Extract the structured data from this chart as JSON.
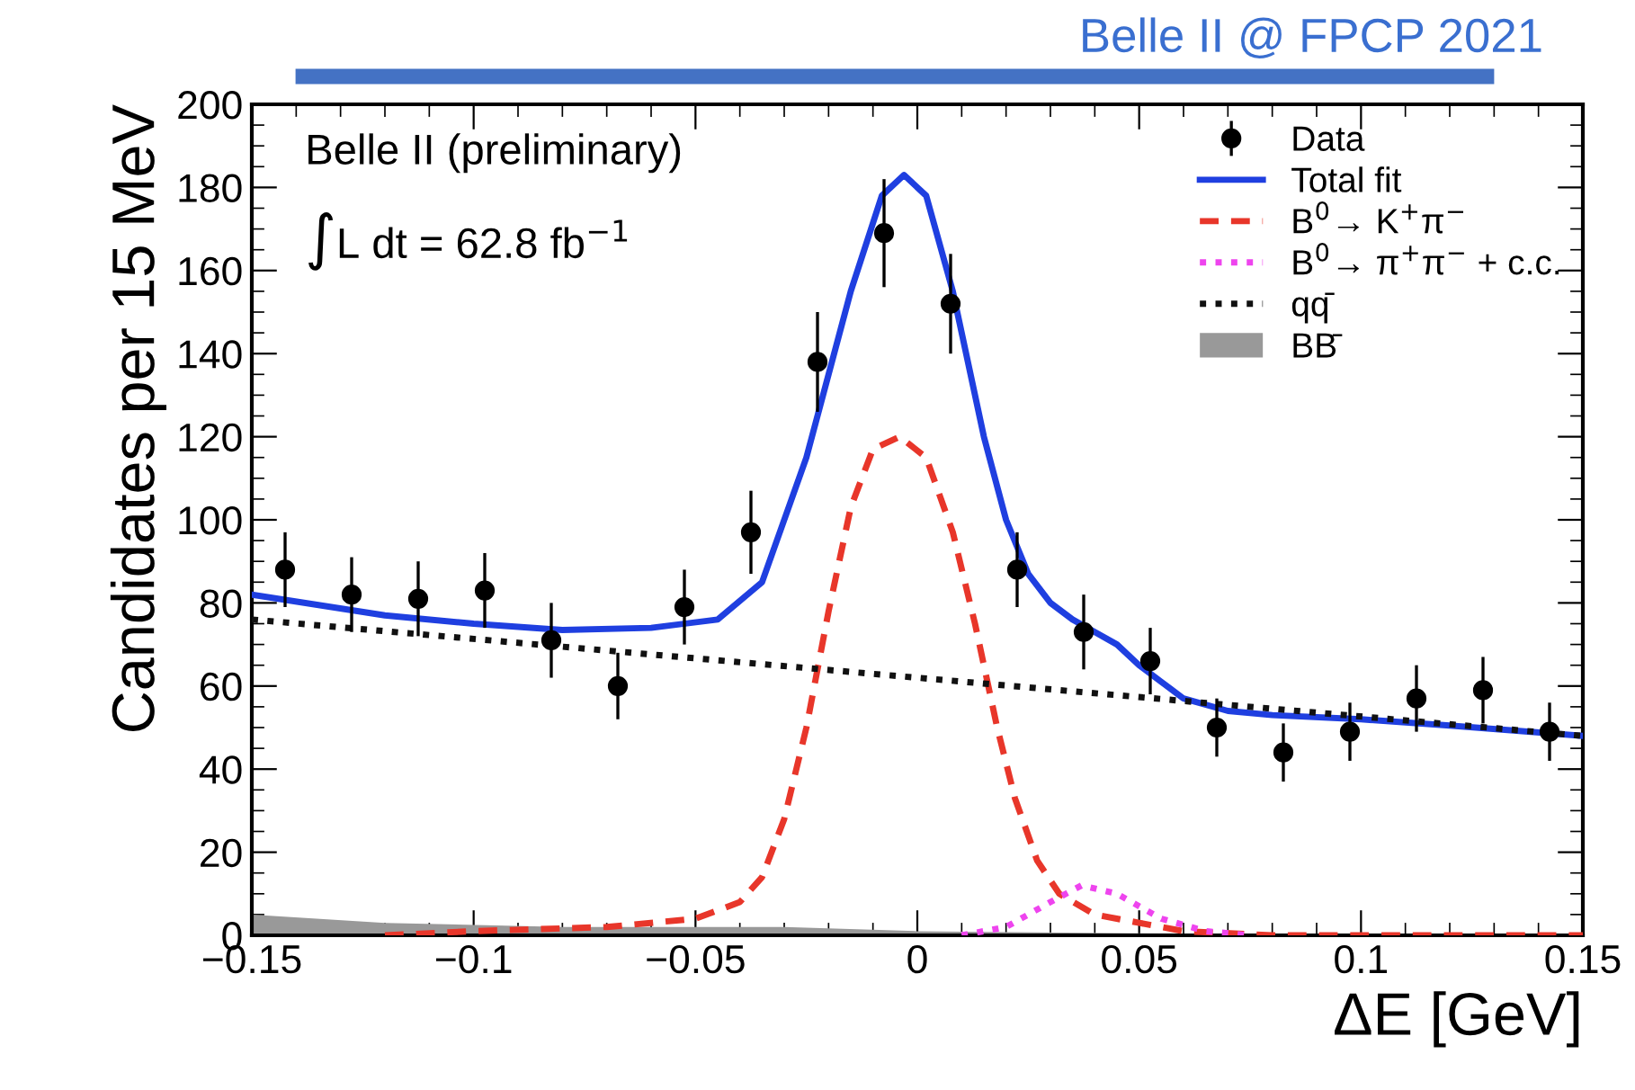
{
  "chart_data": {
    "type": "line",
    "title": "Belle II @ FPCP 2021",
    "xlabel": "ΔE [GeV]",
    "ylabel": "Candidates per 15 MeV",
    "annotations": [
      "Belle II (preliminary)",
      "∫L dt = 62.8 fb$^{−1}$"
    ],
    "xlim": [
      -0.15,
      0.15
    ],
    "xticks": [
      {
        "value": -0.15,
        "label": "−0.15"
      },
      {
        "value": -0.1,
        "label": "−0.1"
      },
      {
        "value": -0.05,
        "label": "−0.05"
      },
      0,
      0.05,
      0.1,
      0.15
    ],
    "ylim": [
      0,
      200
    ],
    "yticks": [
      0,
      20,
      40,
      60,
      80,
      100,
      120,
      140,
      160,
      180,
      200
    ],
    "grid": false,
    "legend": "top right",
    "series": [
      {
        "name": "Data",
        "type": "scatter",
        "marker": "circle",
        "color": "#000000",
        "x": [
          -0.1425,
          -0.1275,
          -0.1125,
          -0.0975,
          -0.0825,
          -0.0675,
          -0.0525,
          -0.0375,
          -0.0225,
          -0.0075,
          0.0075,
          0.0225,
          0.0375,
          0.0525,
          0.0675,
          0.0825,
          0.0975,
          0.1125,
          0.1275,
          0.1425
        ],
        "values": [
          88,
          82,
          81,
          83,
          71,
          60,
          79,
          97,
          138,
          169,
          152,
          88,
          73,
          66,
          50,
          44,
          49,
          57,
          59,
          49
        ],
        "errors": [
          9,
          9,
          9,
          9,
          9,
          8,
          9,
          10,
          12,
          13,
          12,
          9,
          9,
          8,
          7,
          7,
          7,
          8,
          8,
          7
        ]
      },
      {
        "name": "Total fit",
        "line_style": "solid",
        "color": "#1f3fe0",
        "x": [
          -0.15,
          -0.12,
          -0.1,
          -0.08,
          -0.06,
          -0.045,
          -0.035,
          -0.025,
          -0.015,
          -0.008,
          -0.003,
          0.002,
          0.008,
          0.015,
          0.02,
          0.025,
          0.03,
          0.035,
          0.04,
          0.045,
          0.05,
          0.055,
          0.06,
          0.07,
          0.08,
          0.1,
          0.12,
          0.15
        ],
        "values": [
          82,
          77,
          75,
          73.5,
          74,
          76,
          85,
          115,
          155,
          178,
          183,
          178,
          155,
          120,
          100,
          87,
          80,
          76,
          73,
          70,
          65,
          61,
          57,
          54,
          53,
          52,
          50.5,
          48
        ]
      },
      {
        "name": "B$^{0}$→ K$^{+}$π$^{−}$",
        "type": "line",
        "line_style": "dashed",
        "color": "#e8362a",
        "x": [
          -0.12,
          -0.1,
          -0.07,
          -0.05,
          -0.04,
          -0.035,
          -0.03,
          -0.025,
          -0.02,
          -0.015,
          -0.01,
          -0.004,
          0.002,
          0.008,
          0.013,
          0.018,
          0.022,
          0.027,
          0.032,
          0.04,
          0.05,
          0.06,
          0.08,
          0.15
        ],
        "values": [
          0,
          1,
          2,
          4,
          8,
          14,
          28,
          50,
          78,
          103,
          117,
          120,
          115,
          97,
          75,
          50,
          33,
          18,
          10,
          5,
          3,
          1,
          0,
          0
        ]
      },
      {
        "name": "B$^{0}$→ π$^{+}$π$^{−}$ + c.c.",
        "type": "line",
        "line_style": "dotted",
        "color": "#ee44ee",
        "x": [
          0.01,
          0.02,
          0.03,
          0.037,
          0.045,
          0.055,
          0.065,
          0.075
        ],
        "values": [
          0,
          2,
          8,
          12,
          10,
          4,
          1,
          0
        ]
      },
      {
        "name": "qq̄",
        "type": "line",
        "line_style": "dotted",
        "color": "#111111",
        "x": [
          -0.15,
          0.15
        ],
        "values": [
          76,
          48
        ]
      },
      {
        "name": "BB̄",
        "type": "area",
        "color": "#999999",
        "x": [
          -0.15,
          -0.12,
          -0.08,
          -0.03,
          0,
          0.05,
          0.15
        ],
        "values": [
          5,
          3,
          2,
          2,
          1,
          0.5,
          0
        ]
      }
    ]
  }
}
